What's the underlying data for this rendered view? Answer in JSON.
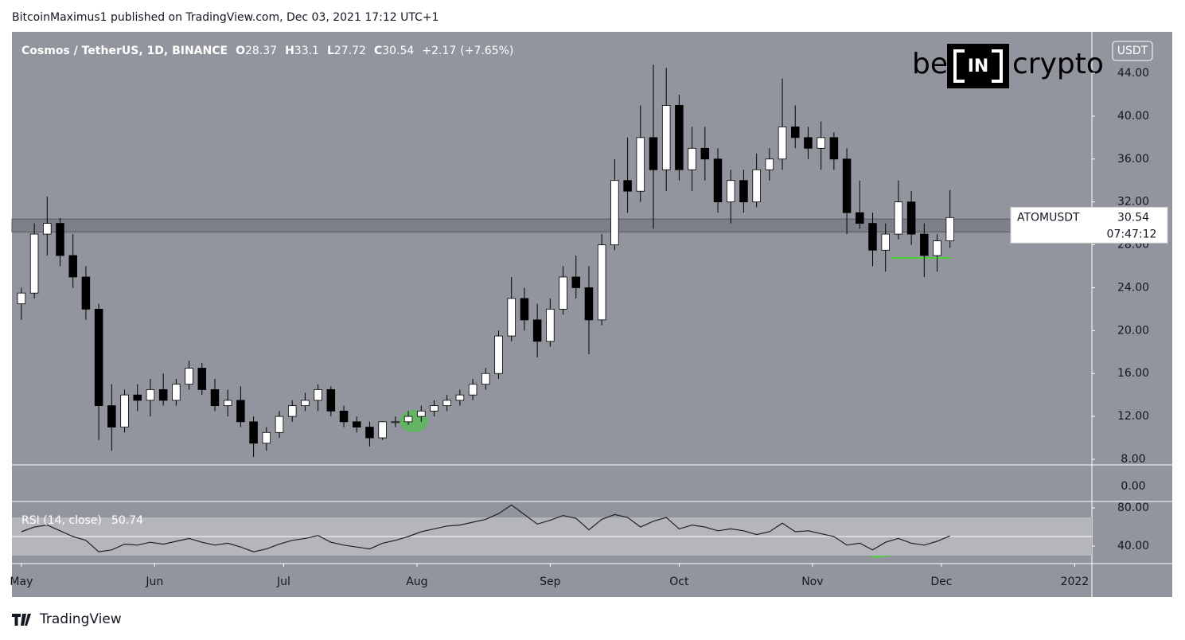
{
  "header": "BitcoinMaximus1 published on TradingView.com, Dec 03, 2021 17:12 UTC+1",
  "footer": "TradingView",
  "chart_data": {
    "type": "candlestick",
    "legend": {
      "symbol": "Cosmos / TetherUS, 1D, BINANCE",
      "keys": [
        "O",
        "H",
        "L",
        "C"
      ],
      "change": {
        "value": 2.17,
        "label": "+2.17"
      },
      "change_pct": {
        "value": 7.65,
        "label": "(+7.65%)"
      }
    },
    "currency": "USDT",
    "price_tag": {
      "symbol": "ATOMUSDT",
      "countdown": "07:47:12"
    },
    "logo": {
      "left": "be",
      "mid": "IN",
      "right": "crypto"
    },
    "up_color": "#ffffff",
    "down_color": "#000000",
    "x": [
      0,
      3,
      6,
      9,
      12,
      15,
      18,
      21,
      24,
      27,
      30,
      33,
      36,
      39,
      42,
      45,
      48,
      51,
      54,
      57,
      60,
      63,
      66,
      69,
      72,
      75,
      78,
      81,
      84,
      87,
      90,
      93,
      96,
      99,
      102,
      105,
      108,
      111,
      114,
      117,
      120,
      123,
      126,
      129,
      132,
      135,
      138,
      141,
      144,
      147,
      150,
      153,
      156,
      159,
      162,
      165,
      168,
      171,
      174,
      177,
      180,
      183,
      186,
      189,
      192,
      195,
      198,
      201,
      204,
      207,
      210,
      213,
      216
    ],
    "ohlc": [
      [
        22.5,
        24,
        21,
        23.5
      ],
      [
        23.5,
        30,
        23,
        29
      ],
      [
        29,
        32.5,
        27,
        30
      ],
      [
        30,
        30.5,
        26,
        27
      ],
      [
        27,
        29,
        24,
        25
      ],
      [
        25,
        26,
        21,
        22
      ],
      [
        22,
        22.5,
        9.8,
        13
      ],
      [
        13,
        15,
        8.8,
        11
      ],
      [
        11,
        14.5,
        10.5,
        14
      ],
      [
        14,
        15,
        12.5,
        13.5
      ],
      [
        13.5,
        15.5,
        12,
        14.5
      ],
      [
        14.5,
        16,
        13,
        13.5
      ],
      [
        13.5,
        15.5,
        13,
        15
      ],
      [
        15,
        17.2,
        14.5,
        16.5
      ],
      [
        16.5,
        17,
        14,
        14.5
      ],
      [
        14.5,
        15.5,
        12.5,
        13
      ],
      [
        13,
        14.5,
        12,
        13.5
      ],
      [
        13.5,
        14.8,
        11,
        11.5
      ],
      [
        11.5,
        12,
        8.2,
        9.5
      ],
      [
        9.5,
        11,
        8.8,
        10.5
      ],
      [
        10.5,
        12.5,
        10,
        12
      ],
      [
        12,
        13.5,
        11.5,
        13
      ],
      [
        13,
        14.2,
        12.5,
        13.5
      ],
      [
        13.5,
        15,
        12.5,
        14.5
      ],
      [
        14.5,
        14.8,
        12,
        12.5
      ],
      [
        12.5,
        13,
        11,
        11.5
      ],
      [
        11.5,
        12,
        10.5,
        11
      ],
      [
        11,
        11.5,
        9.2,
        10
      ],
      [
        10,
        11.5,
        9.8,
        11.5
      ],
      [
        11.5,
        12,
        11,
        11.5
      ],
      [
        11.5,
        12.5,
        11.2,
        12
      ],
      [
        12,
        13,
        11.5,
        12.5
      ],
      [
        12.5,
        13.5,
        12,
        13
      ],
      [
        13,
        14,
        12.5,
        13.5
      ],
      [
        13.5,
        14.5,
        13,
        14
      ],
      [
        14,
        15.5,
        13.5,
        15
      ],
      [
        15,
        16.5,
        14.5,
        16
      ],
      [
        16,
        20,
        15.5,
        19.5
      ],
      [
        19.5,
        25,
        19,
        23
      ],
      [
        23,
        24,
        20,
        21
      ],
      [
        21,
        22.5,
        17.5,
        19
      ],
      [
        19,
        23,
        18.5,
        22
      ],
      [
        22,
        26,
        21.5,
        25
      ],
      [
        25,
        27,
        23,
        24
      ],
      [
        24,
        26,
        17.8,
        21
      ],
      [
        21,
        29,
        20.5,
        28
      ],
      [
        28,
        36,
        27.5,
        34
      ],
      [
        34,
        38,
        31,
        33
      ],
      [
        33,
        41,
        32,
        38
      ],
      [
        38,
        44.8,
        29.5,
        35
      ],
      [
        35,
        44.5,
        33,
        41
      ],
      [
        41,
        42,
        34,
        35
      ],
      [
        35,
        39,
        33,
        37
      ],
      [
        37,
        39,
        34,
        36
      ],
      [
        36,
        37,
        31,
        32
      ],
      [
        32,
        35,
        30,
        34
      ],
      [
        34,
        35,
        31,
        32
      ],
      [
        32,
        36.5,
        31.5,
        35
      ],
      [
        35,
        37,
        34,
        36
      ],
      [
        36,
        43.5,
        35,
        39
      ],
      [
        39,
        41,
        37,
        38
      ],
      [
        38,
        39,
        36,
        37
      ],
      [
        37,
        39.5,
        35,
        38
      ],
      [
        38,
        38.5,
        35,
        36
      ],
      [
        36,
        37,
        29,
        31
      ],
      [
        31,
        34,
        29.5,
        30
      ],
      [
        30,
        31,
        26,
        27.5
      ],
      [
        27.5,
        30,
        25.5,
        29
      ],
      [
        29,
        34,
        28.5,
        32
      ],
      [
        32,
        33,
        28,
        29
      ],
      [
        29,
        30,
        25,
        27
      ],
      [
        27,
        29,
        25.5,
        28.37
      ],
      [
        28.37,
        33.1,
        27.72,
        30.54
      ]
    ],
    "zone": [
      29.2,
      30.4
    ],
    "xlim": [
      -2.2,
      249
    ],
    "xticks": [
      {
        "value": 0,
        "label": "May"
      },
      {
        "value": 31,
        "label": "Jun"
      },
      {
        "value": 61,
        "label": "Jul"
      },
      {
        "value": 92,
        "label": "Aug"
      },
      {
        "value": 123,
        "label": "Sep"
      },
      {
        "value": 153,
        "label": "Oct"
      },
      {
        "value": 184,
        "label": "Nov"
      },
      {
        "value": 214,
        "label": "Dec"
      },
      {
        "value": 245,
        "label": "2022"
      }
    ],
    "ylim": [
      7.48,
      47.86
    ],
    "yticks": [
      {
        "value": 8,
        "label": "8.00"
      },
      {
        "value": 12,
        "label": "12.00"
      },
      {
        "value": 16,
        "label": "16.00"
      },
      {
        "value": 20,
        "label": "20.00"
      },
      {
        "value": 24,
        "label": "24.00"
      },
      {
        "value": 28,
        "label": "28.00"
      },
      {
        "value": 32,
        "label": "32.00"
      },
      {
        "value": 36,
        "label": "36.00"
      },
      {
        "value": 40,
        "label": "40.00"
      },
      {
        "value": 44,
        "label": "44.00"
      }
    ],
    "volume_ticks": [
      {
        "value": 0,
        "label": "0.00"
      }
    ],
    "rsi": {
      "name": "RSI (14, close)",
      "color": "#222222",
      "values": [
        55,
        60,
        62,
        56,
        50,
        46,
        34,
        36,
        42,
        41,
        44,
        42,
        45,
        48,
        44,
        41,
        43,
        39,
        34,
        37,
        42,
        46,
        48,
        51,
        44,
        41,
        39,
        37,
        43,
        46,
        50,
        55,
        58,
        61,
        62,
        65,
        68,
        74,
        83,
        73,
        63,
        67,
        72,
        69,
        57,
        68,
        73,
        70,
        60,
        66,
        70,
        58,
        62,
        60,
        56,
        58,
        56,
        52,
        55,
        64,
        55,
        56,
        53,
        50,
        41,
        43,
        36,
        44,
        48,
        43,
        41,
        45,
        50.74
      ],
      "band": [
        30,
        70
      ],
      "mid": 50,
      "ylim": [
        21.7,
        86.7
      ],
      "yticks": [
        {
          "value": 40,
          "label": "40.00"
        },
        {
          "value": 80,
          "label": "80.00"
        }
      ]
    }
  }
}
